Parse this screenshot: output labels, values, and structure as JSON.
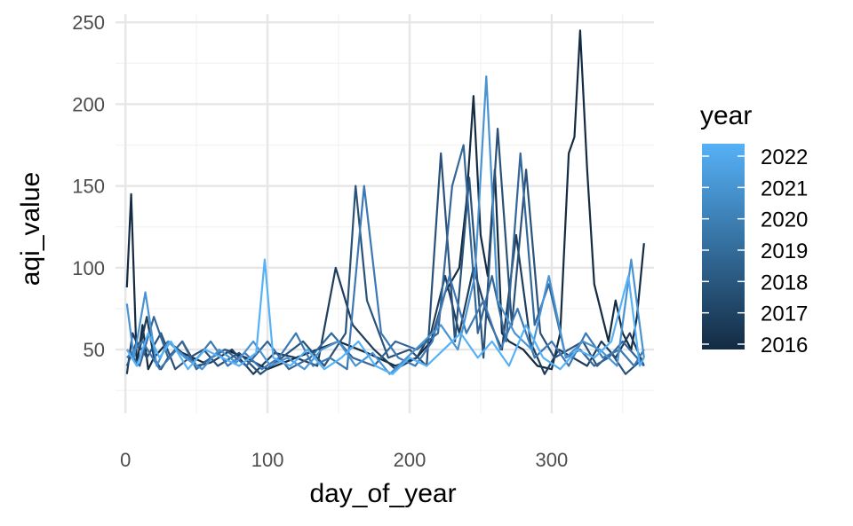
{
  "chart_data": {
    "type": "line",
    "xlabel": "day_of_year",
    "ylabel": "aqi_value",
    "xlim": [
      -7,
      372
    ],
    "ylim": [
      11,
      255
    ],
    "x_ticks": [
      0,
      100,
      200,
      300
    ],
    "y_ticks": [
      50,
      100,
      150,
      200,
      250
    ],
    "grid": true,
    "legend": {
      "title": "year",
      "placement": "right",
      "type": "colorbar",
      "labels": [
        "2022",
        "2021",
        "2020",
        "2019",
        "2018",
        "2017",
        "2016"
      ],
      "color_low": "#132B43",
      "color_high": "#56B1F7"
    },
    "series": [
      {
        "name": "2016",
        "color": "#132B43",
        "x": [
          1,
          4,
          8,
          12,
          16,
          20,
          30,
          40,
          55,
          70,
          85,
          100,
          120,
          150,
          170,
          190,
          205,
          215,
          225,
          235,
          240,
          245,
          250,
          255,
          260,
          265,
          270,
          280,
          290,
          300,
          306,
          312,
          316,
          320,
          325,
          330,
          340,
          345,
          350,
          356,
          360,
          365
        ],
        "y": [
          88,
          145,
          40,
          65,
          38,
          45,
          55,
          48,
          42,
          50,
          45,
          38,
          45,
          55,
          48,
          40,
          45,
          55,
          85,
          100,
          140,
          205,
          120,
          95,
          160,
          60,
          55,
          50,
          40,
          38,
          60,
          170,
          180,
          245,
          160,
          90,
          55,
          80,
          60,
          50,
          70,
          115
        ]
      },
      {
        "name": "2017",
        "color": "#1E3D5C",
        "x": [
          1,
          5,
          10,
          15,
          20,
          25,
          30,
          40,
          50,
          60,
          75,
          90,
          105,
          120,
          135,
          148,
          160,
          175,
          190,
          205,
          215,
          225,
          235,
          245,
          255,
          265,
          275,
          285,
          295,
          305,
          315,
          325,
          335,
          345,
          355,
          365
        ],
        "y": [
          35,
          60,
          50,
          70,
          45,
          38,
          45,
          55,
          40,
          42,
          50,
          35,
          48,
          45,
          40,
          100,
          65,
          50,
          38,
          45,
          60,
          95,
          60,
          100,
          70,
          50,
          120,
          55,
          35,
          50,
          45,
          40,
          55,
          45,
          60,
          40
        ]
      },
      {
        "name": "2018",
        "color": "#2A5179",
        "x": [
          1,
          8,
          15,
          25,
          35,
          45,
          55,
          65,
          80,
          95,
          110,
          125,
          140,
          155,
          162,
          170,
          185,
          200,
          212,
          222,
          232,
          242,
          252,
          262,
          272,
          282,
          292,
          302,
          312,
          322,
          332,
          342,
          352,
          365
        ],
        "y": [
          40,
          55,
          45,
          60,
          38,
          45,
          50,
          40,
          48,
          35,
          45,
          55,
          40,
          60,
          150,
          80,
          45,
          50,
          40,
          170,
          55,
          155,
          45,
          185,
          65,
          160,
          60,
          45,
          50,
          55,
          40,
          48,
          35,
          45
        ]
      },
      {
        "name": "2019",
        "color": "#336699",
        "x": [
          1,
          10,
          20,
          30,
          40,
          50,
          60,
          70,
          85,
          100,
          115,
          130,
          145,
          160,
          175,
          190,
          205,
          220,
          230,
          238,
          248,
          258,
          268,
          278,
          288,
          298,
          310,
          320,
          330,
          340,
          350,
          365
        ],
        "y": [
          50,
          40,
          70,
          45,
          55,
          38,
          45,
          50,
          40,
          55,
          38,
          45,
          60,
          45,
          40,
          55,
          50,
          60,
          150,
          175,
          60,
          95,
          55,
          170,
          65,
          90,
          45,
          50,
          40,
          45,
          55,
          40
        ]
      },
      {
        "name": "2020",
        "color": "#3C78B4",
        "x": [
          1,
          12,
          24,
          36,
          48,
          60,
          72,
          84,
          96,
          108,
          120,
          132,
          144,
          156,
          168,
          180,
          192,
          204,
          216,
          228,
          240,
          252,
          264,
          276,
          288,
          300,
          312,
          324,
          336,
          348,
          358,
          365
        ],
        "y": [
          45,
          55,
          38,
          50,
          42,
          55,
          40,
          48,
          38,
          45,
          60,
          40,
          45,
          38,
          150,
          60,
          45,
          40,
          55,
          95,
          60,
          80,
          50,
          75,
          45,
          55,
          40,
          60,
          45,
          50,
          40,
          50
        ]
      },
      {
        "name": "2021",
        "color": "#4A93D2",
        "x": [
          1,
          6,
          14,
          22,
          30,
          42,
          54,
          66,
          78,
          90,
          102,
          114,
          126,
          138,
          150,
          162,
          174,
          186,
          198,
          210,
          222,
          234,
          246,
          254,
          262,
          274,
          286,
          298,
          310,
          322,
          334,
          346,
          356,
          365
        ],
        "y": [
          78,
          45,
          85,
          40,
          55,
          45,
          38,
          50,
          42,
          55,
          40,
          45,
          38,
          50,
          55,
          40,
          48,
          35,
          45,
          55,
          65,
          50,
          95,
          217,
          80,
          60,
          50,
          95,
          45,
          55,
          50,
          40,
          105,
          45
        ]
      },
      {
        "name": "2022",
        "color": "#56B1F7",
        "x": [
          1,
          8,
          16,
          24,
          32,
          44,
          56,
          68,
          80,
          92,
          98,
          104,
          116,
          128,
          140,
          152,
          164,
          176,
          188,
          200,
          212,
          224,
          236,
          248,
          258,
          270,
          282,
          294,
          306,
          318,
          330,
          342,
          354,
          362,
          365
        ],
        "y": [
          50,
          40,
          60,
          45,
          55,
          38,
          50,
          45,
          40,
          48,
          105,
          45,
          40,
          50,
          38,
          45,
          55,
          40,
          35,
          45,
          40,
          50,
          60,
          45,
          55,
          40,
          65,
          45,
          38,
          50,
          45,
          55,
          95,
          40,
          45
        ]
      }
    ]
  }
}
